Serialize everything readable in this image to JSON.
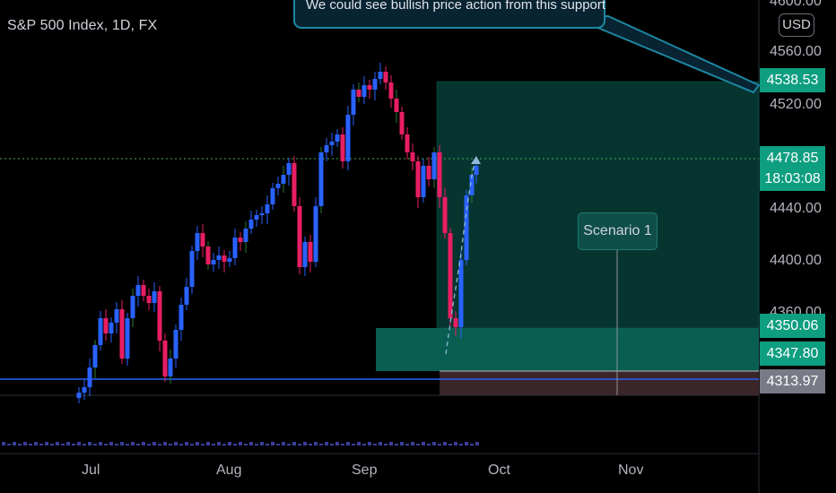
{
  "header": {
    "symbol_title": "S&P 500 Index, 1D, FX"
  },
  "callout": {
    "text": "We could see bullish price action from this support"
  },
  "currency": {
    "label": "USD"
  },
  "price_axis": {
    "labels": [
      "4600.00",
      "4560.00",
      "4520.00",
      "4440.00",
      "4400.00",
      "4360.00"
    ]
  },
  "price_tags": {
    "target": "4538.53",
    "last_price": "4478.85",
    "countdown": "18:03:08",
    "entry": "4350.06",
    "entry2": "4347.80",
    "stop": "4313.97"
  },
  "time_axis": {
    "labels": [
      "Jul",
      "Aug",
      "Sep",
      "Oct",
      "Nov"
    ]
  },
  "annotation": {
    "scenario": "Scenario 1"
  },
  "colors": {
    "up": "#2962ff",
    "down": "#e91e63",
    "target_zone": "#089981",
    "stop_zone": "#b23a48",
    "support_line": "#2962ff"
  }
}
